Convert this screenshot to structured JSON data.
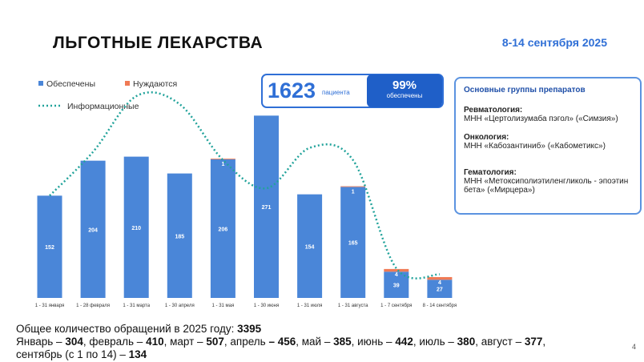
{
  "header": {
    "title": "ЛЬГОТНЫЕ ЛЕКАРСТВА",
    "date": "8-14 сентября 2025"
  },
  "kpi": {
    "patients": "1623",
    "patients_label": "пациента",
    "percent": "99%",
    "percent_label": "обеспечены"
  },
  "chart_data": {
    "type": "bar",
    "stacked": true,
    "categories": [
      "1 - 31 января",
      "1 - 28 февраля",
      "1 - 31 марта",
      "1 - 30 апреля",
      "1 - 31 мая",
      "1 - 30 июня",
      "1 - 31 июля",
      "1 - 31 августа",
      "1 - 7 сентября",
      "8 - 14 сентября"
    ],
    "series": [
      {
        "name": "Обеспечены",
        "color": "#4a86d8",
        "values": [
          152,
          204,
          210,
          185,
          206,
          271,
          154,
          165,
          39,
          27
        ]
      },
      {
        "name": "Нуждаются",
        "color": "#f07a55",
        "values": [
          0,
          0,
          0,
          0,
          1,
          0,
          0,
          1,
          4,
          4
        ]
      },
      {
        "name": "Информационные",
        "type": "line",
        "color": "#22a39b",
        "values": [
          152,
          217,
          300,
          288,
          205,
          163,
          223,
          205,
          44,
          35
        ]
      }
    ]
  },
  "groups": {
    "title": "Основные группы препаратов",
    "items": [
      {
        "name": "Ревматология:",
        "text": "МНН «Цертолизумаба пэгол» («Симзия»)"
      },
      {
        "name": "Онкология:",
        "text": "МНН «Кабозантиниб» («Кабометикс»)"
      },
      {
        "name": "Гематология:",
        "text": "МНН «Метоксиполиэтиленгликоль - эпоэтин бета» («Мирцера»)"
      }
    ]
  },
  "note": {
    "total_label": "Общее количество обращений в 2025 году:",
    "total": 3395,
    "lines": [
      [
        {
          "label": "Январь –",
          "value": 304
        },
        {
          "label": ", февраль –",
          "value": 410
        },
        {
          "label": ",  март  –",
          "value": 507
        },
        {
          "label": ", апрель",
          "value": "– 456"
        },
        {
          "label": ", май –",
          "value": 385
        },
        {
          "label": ", июнь –",
          "value": 442
        },
        {
          "label": ", июль –",
          "value": 380
        },
        {
          "label": ", август –",
          "value": 377,
          "suffix": ","
        }
      ],
      [
        {
          "label": "сентябрь (с 1 по 14) –",
          "value": 134
        }
      ]
    ]
  },
  "page": "4"
}
